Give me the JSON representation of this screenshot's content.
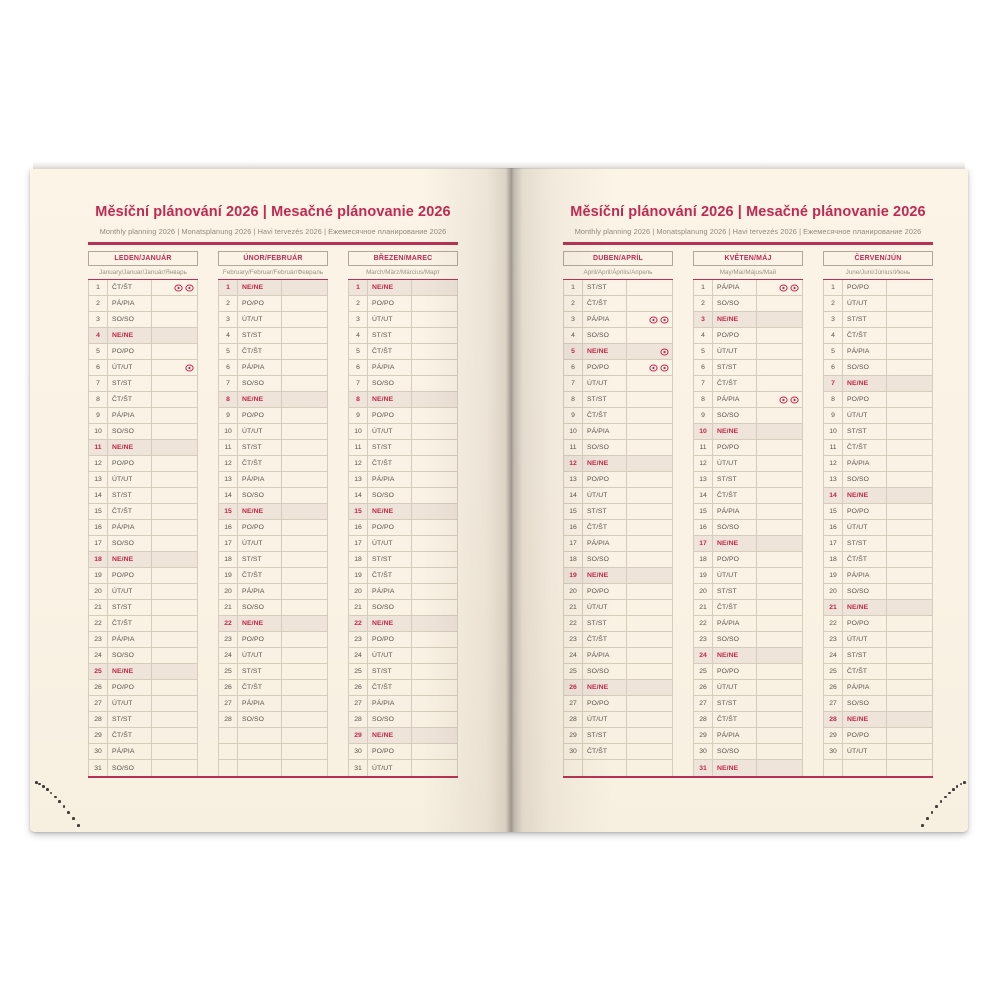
{
  "book": {
    "title": "Měsíční plánování 2026 | Mesačné plánovanie 2026",
    "subtitle": "Monthly planning 2026 | Monatsplanung 2026 | Havi tervezés 2026 | Ежемесячное планирование 2026"
  },
  "colors": {
    "accent_red": "#c02a52",
    "rule_red": "#b63153",
    "sunday_red": "#c22846",
    "sunday_row_bg": "#efe4d9",
    "paper": "#faf2e4",
    "ink": "#57524a",
    "muted_gray": "#8f897d",
    "row_border": "#d6ccba"
  },
  "day_names": [
    "PO/PO",
    "ÚT/UT",
    "ST/ST",
    "ČT/ŠT",
    "PÁ/PIA",
    "SO/SO",
    "NE/NE"
  ],
  "rows_per_table": 31,
  "marker_icon": "holiday-emblem-icon",
  "pages": [
    {
      "months": [
        {
          "name": "LEDEN/JANUÁR",
          "languages": "January/Januar/Január/Январь",
          "first_weekday": 3,
          "days": 31,
          "markers": {
            "1": 2,
            "6": 1
          }
        },
        {
          "name": "ÚNOR/FEBRUÁR",
          "languages": "February/Februar/Február/Февраль",
          "first_weekday": 6,
          "days": 28,
          "markers": {}
        },
        {
          "name": "BŘEZEN/MAREC",
          "languages": "March/März/Március/Март",
          "first_weekday": 6,
          "days": 31,
          "markers": {}
        }
      ]
    },
    {
      "months": [
        {
          "name": "DUBEN/APRÍL",
          "languages": "April/April/Április/Апрель",
          "first_weekday": 2,
          "days": 30,
          "markers": {
            "3": 2,
            "5": 1,
            "6": 2
          }
        },
        {
          "name": "KVĚTEN/MÁJ",
          "languages": "May/Mai/Május/Май",
          "first_weekday": 4,
          "days": 31,
          "markers": {
            "1": 2,
            "8": 2
          }
        },
        {
          "name": "ČERVEN/JÚN",
          "languages": "June/Juni/Június/Июнь",
          "first_weekday": 0,
          "days": 30,
          "markers": {}
        }
      ]
    }
  ]
}
